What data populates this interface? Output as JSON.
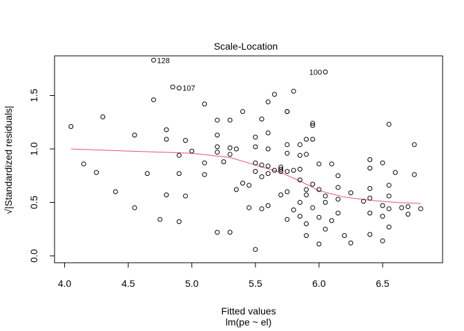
{
  "chart_data": {
    "type": "scatter",
    "title": "Scale-Location",
    "xlabel": "Fitted values",
    "subtitle": "lm(pe ~ el)",
    "ylabel": "√|Standardized residuals|",
    "xlim": [
      4.0,
      6.8
    ],
    "ylim": [
      0.0,
      1.85
    ],
    "x_ticks": [
      "4.0",
      "4.5",
      "5.0",
      "5.5",
      "6.0",
      "6.5"
    ],
    "y_ticks": [
      "0.0",
      "0.5",
      "1.0",
      "1.5"
    ],
    "grid": false,
    "colors": {
      "points": "#000000",
      "smooth": "#df536b"
    },
    "points": [
      [
        4.05,
        1.21
      ],
      [
        4.15,
        0.86
      ],
      [
        4.25,
        0.78
      ],
      [
        4.3,
        1.3
      ],
      [
        4.4,
        0.6
      ],
      [
        4.55,
        1.13
      ],
      [
        4.55,
        0.45
      ],
      [
        4.65,
        0.77
      ],
      [
        4.7,
        1.46
      ],
      [
        4.7,
        1.83
      ],
      [
        4.75,
        0.34
      ],
      [
        4.8,
        1.18
      ],
      [
        4.8,
        1.09
      ],
      [
        4.8,
        0.57
      ],
      [
        4.85,
        1.58
      ],
      [
        4.9,
        1.57
      ],
      [
        4.9,
        0.94
      ],
      [
        4.9,
        0.77
      ],
      [
        4.9,
        0.32
      ],
      [
        4.95,
        1.08
      ],
      [
        4.95,
        0.56
      ],
      [
        5.0,
        0.98
      ],
      [
        5.1,
        1.42
      ],
      [
        5.1,
        0.87
      ],
      [
        5.1,
        0.76
      ],
      [
        5.2,
        1.27
      ],
      [
        5.2,
        1.13
      ],
      [
        5.2,
        1.02
      ],
      [
        5.2,
        0.97
      ],
      [
        5.2,
        0.22
      ],
      [
        5.25,
        0.88
      ],
      [
        5.3,
        1.27
      ],
      [
        5.3,
        1.01
      ],
      [
        5.3,
        0.95
      ],
      [
        5.3,
        0.22
      ],
      [
        5.35,
        1.0
      ],
      [
        5.35,
        0.62
      ],
      [
        5.4,
        1.35
      ],
      [
        5.4,
        0.68
      ],
      [
        5.45,
        0.66
      ],
      [
        5.45,
        0.45
      ],
      [
        5.5,
        1.11
      ],
      [
        5.5,
        1.02
      ],
      [
        5.5,
        0.87
      ],
      [
        5.5,
        0.79
      ],
      [
        5.5,
        0.06
      ],
      [
        5.55,
        1.28
      ],
      [
        5.55,
        0.85
      ],
      [
        5.55,
        0.74
      ],
      [
        5.55,
        0.44
      ],
      [
        5.6,
        1.44
      ],
      [
        5.6,
        1.15
      ],
      [
        5.6,
        1.0
      ],
      [
        5.6,
        0.84
      ],
      [
        5.6,
        0.77
      ],
      [
        5.6,
        0.47
      ],
      [
        5.65,
        1.51
      ],
      [
        5.65,
        0.8
      ],
      [
        5.7,
        0.83
      ],
      [
        5.7,
        0.81
      ],
      [
        5.7,
        0.79
      ],
      [
        5.7,
        0.57
      ],
      [
        5.75,
        1.35
      ],
      [
        5.75,
        1.35
      ],
      [
        5.75,
        1.04
      ],
      [
        5.75,
        0.96
      ],
      [
        5.75,
        0.79
      ],
      [
        5.75,
        0.6
      ],
      [
        5.75,
        0.34
      ],
      [
        5.8,
        1.54
      ],
      [
        5.8,
        0.8
      ],
      [
        5.8,
        0.43
      ],
      [
        5.85,
        1.04
      ],
      [
        5.85,
        0.94
      ],
      [
        5.85,
        0.81
      ],
      [
        5.85,
        0.71
      ],
      [
        5.85,
        0.5
      ],
      [
        5.85,
        0.37
      ],
      [
        5.9,
        1.09
      ],
      [
        5.9,
        0.95
      ],
      [
        5.9,
        0.62
      ],
      [
        5.9,
        0.57
      ],
      [
        5.9,
        0.3
      ],
      [
        5.9,
        0.19
      ],
      [
        5.95,
        1.24
      ],
      [
        5.95,
        1.22
      ],
      [
        5.95,
        1.09
      ],
      [
        5.95,
        0.67
      ],
      [
        5.95,
        0.45
      ],
      [
        6.0,
        0.86
      ],
      [
        6.0,
        0.62
      ],
      [
        6.0,
        0.36
      ],
      [
        6.0,
        0.11
      ],
      [
        6.05,
        1.72
      ],
      [
        6.05,
        0.56
      ],
      [
        6.05,
        0.5
      ],
      [
        6.05,
        0.25
      ],
      [
        6.1,
        0.86
      ],
      [
        6.1,
        0.33
      ],
      [
        6.15,
        0.75
      ],
      [
        6.15,
        0.64
      ],
      [
        6.15,
        0.53
      ],
      [
        6.15,
        0.4
      ],
      [
        6.2,
        0.19
      ],
      [
        6.25,
        0.59
      ],
      [
        6.25,
        0.12
      ],
      [
        6.35,
        0.51
      ],
      [
        6.4,
        0.9
      ],
      [
        6.4,
        0.82
      ],
      [
        6.4,
        0.63
      ],
      [
        6.4,
        0.54
      ],
      [
        6.4,
        0.4
      ],
      [
        6.4,
        0.2
      ],
      [
        6.5,
        0.87
      ],
      [
        6.5,
        0.47
      ],
      [
        6.5,
        0.37
      ],
      [
        6.5,
        0.14
      ],
      [
        6.55,
        1.23
      ],
      [
        6.55,
        0.66
      ],
      [
        6.55,
        0.56
      ],
      [
        6.55,
        0.44
      ],
      [
        6.55,
        0.27
      ],
      [
        6.6,
        0.78
      ],
      [
        6.65,
        0.45
      ],
      [
        6.7,
        0.46
      ],
      [
        6.7,
        0.39
      ],
      [
        6.75,
        1.04
      ],
      [
        6.75,
        0.76
      ],
      [
        6.8,
        0.44
      ]
    ],
    "smooth_line": [
      [
        4.05,
        1.0
      ],
      [
        4.5,
        0.98
      ],
      [
        5.0,
        0.96
      ],
      [
        5.3,
        0.92
      ],
      [
        5.5,
        0.85
      ],
      [
        5.7,
        0.78
      ],
      [
        5.85,
        0.7
      ],
      [
        6.0,
        0.61
      ],
      [
        6.2,
        0.55
      ],
      [
        6.4,
        0.52
      ],
      [
        6.6,
        0.5
      ],
      [
        6.8,
        0.49
      ]
    ],
    "annotations": [
      {
        "label": "128",
        "x": 4.7,
        "y": 1.83,
        "pos": "right"
      },
      {
        "label": "107",
        "x": 4.9,
        "y": 1.57,
        "pos": "right"
      },
      {
        "label": "100",
        "x": 6.05,
        "y": 1.72,
        "pos": "left"
      }
    ]
  }
}
